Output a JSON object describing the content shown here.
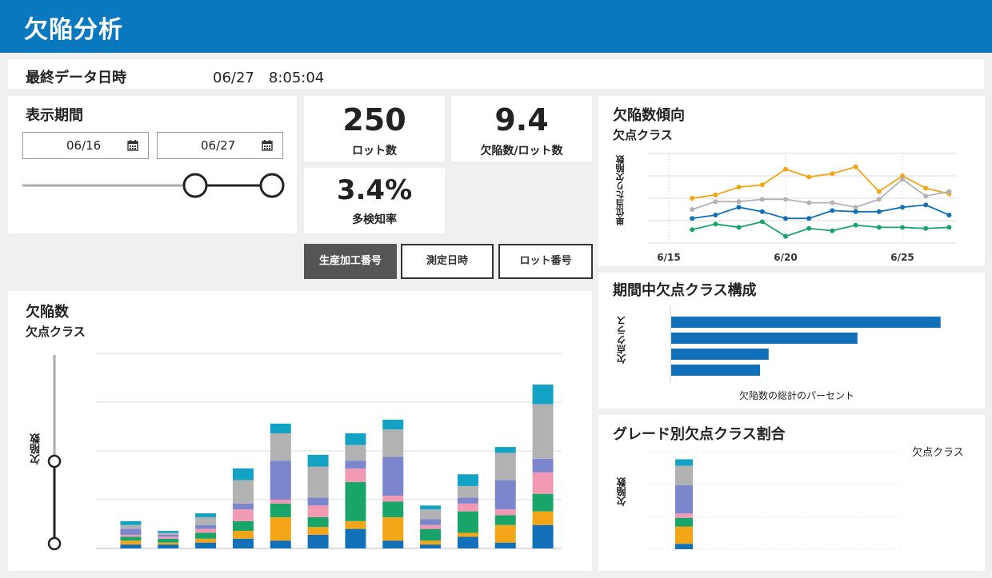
{
  "header": {
    "title": "欠陥分析"
  },
  "last_update": {
    "label": "最終データ日時",
    "value": "06/27　8:05:04"
  },
  "period": {
    "title": "表示期間",
    "start_date": "06/16",
    "end_date": "06/27",
    "calendar_icon": "calendar-icon",
    "slider": {
      "range_start": 0.83,
      "range_end": 1.0
    }
  },
  "kpis": [
    {
      "value": "250",
      "label": "ロット数"
    },
    {
      "value": "9.4",
      "label": "欠陥数/ロット数"
    },
    {
      "value": "3.4%",
      "label": "多検知率"
    }
  ],
  "grouping_buttons": [
    {
      "label": "生産加工番号",
      "active": true
    },
    {
      "label": "測定日時",
      "active": false
    },
    {
      "label": "ロット番号",
      "active": false
    }
  ],
  "trend": {
    "title": "欠陥数傾向",
    "subtitle": "欠点クラス",
    "y_axis_title": "単位当たり欠陥数"
  },
  "composition": {
    "title": "期間中欠点クラス構成",
    "y_axis_title": "欠点クラス",
    "x_axis_title": "欠陥数の総計のパーセント"
  },
  "defects": {
    "title": "欠陥数",
    "subtitle": "欠点クラス",
    "y_axis_title": "欠陥数",
    "slider": {
      "range_start": 0.0,
      "range_end": 0.76
    }
  },
  "grade": {
    "title": "グレード別欠点クラス割合",
    "legend_title": "欠点クラス",
    "y_axis_title": "欠陥数"
  },
  "colors": {
    "header": "#0a78bf",
    "blue": "#1170b8",
    "orange": "#f2a516",
    "green": "#19a56a",
    "pink": "#f29ab4",
    "purple": "#7b86cc",
    "gray": "#b2b2b2",
    "teal": "#12a3c4",
    "active_button": "#555555"
  },
  "chart_data": [
    {
      "type": "line",
      "x": [
        "6/16",
        "6/17",
        "6/18",
        "6/19",
        "6/20",
        "6/21",
        "6/22",
        "6/23",
        "6/24",
        "6/25",
        "6/26",
        "6/27"
      ],
      "x_ticks": [
        "6/15",
        "6/20",
        "6/25"
      ],
      "ylabel": "単位当たり欠陥数",
      "ylim": [
        0,
        4
      ],
      "grid": true,
      "series": [
        {
          "color": "#f2a516",
          "values": [
            2.0,
            2.15,
            2.5,
            2.6,
            3.3,
            2.95,
            3.1,
            3.4,
            2.3,
            3.0,
            2.45,
            2.2
          ]
        },
        {
          "color": "#b2b2b2",
          "values": [
            1.5,
            1.85,
            1.85,
            1.95,
            1.95,
            1.8,
            1.8,
            1.6,
            1.95,
            2.85,
            2.1,
            2.3
          ]
        },
        {
          "color": "#1170b8",
          "values": [
            1.1,
            1.25,
            1.6,
            1.4,
            1.1,
            1.1,
            1.45,
            1.4,
            1.4,
            1.6,
            1.7,
            1.25
          ]
        },
        {
          "color": "#19a56a",
          "values": [
            0.6,
            0.85,
            0.7,
            0.95,
            0.3,
            0.65,
            0.55,
            0.8,
            0.7,
            0.7,
            0.65,
            0.7
          ]
        }
      ]
    },
    {
      "type": "bar",
      "orientation": "horizontal",
      "categories": [
        "",
        "",
        "",
        ""
      ],
      "values": [
        47,
        32.5,
        17,
        15.5
      ],
      "xlim": [
        0,
        50
      ],
      "xlabel": "欠陥数の総計のパーセント",
      "ylabel": "欠点クラス",
      "color": "#1170b8"
    },
    {
      "type": "bar",
      "stacked": true,
      "ylabel": "欠陥数",
      "ylim": [
        0,
        100
      ],
      "grid": true,
      "series_colors": [
        "#1170b8",
        "#f2a516",
        "#19a56a",
        "#f29ab4",
        "#7b86cc",
        "#b2b2b2",
        "#12a3c4"
      ],
      "bars": [
        [
          2,
          2,
          2,
          1,
          3,
          2,
          2
        ],
        [
          2,
          1,
          2,
          1,
          1,
          1,
          1
        ],
        [
          3,
          2,
          3,
          2,
          2,
          4,
          2
        ],
        [
          5,
          4,
          5,
          6,
          3,
          12,
          6
        ],
        [
          4,
          12,
          7,
          2,
          20,
          14,
          5
        ],
        [
          7,
          4,
          5,
          6,
          4,
          16,
          6
        ],
        [
          10,
          4,
          20,
          7,
          4,
          8,
          6
        ],
        [
          4,
          12,
          8,
          3,
          20,
          14,
          5
        ],
        [
          2,
          2,
          6,
          2,
          3,
          5,
          2
        ],
        [
          6,
          2,
          11,
          4,
          3,
          6,
          6
        ],
        [
          3,
          9,
          5,
          3,
          15,
          14,
          3
        ],
        [
          12,
          7,
          9,
          11,
          7,
          28,
          10
        ]
      ]
    },
    {
      "type": "bar",
      "stacked": true,
      "ylabel": "欠陥数",
      "legend_title": "欠点クラス",
      "ylim": [
        0,
        45
      ],
      "grid": true,
      "series_colors": [
        "#1170b8",
        "#f2a516",
        "#19a56a",
        "#f29ab4",
        "#7b86cc",
        "#b2b2b2",
        "#12a3c4"
      ],
      "bars": [
        [
          2.5,
          8,
          4,
          2,
          13,
          9,
          3
        ]
      ]
    }
  ]
}
